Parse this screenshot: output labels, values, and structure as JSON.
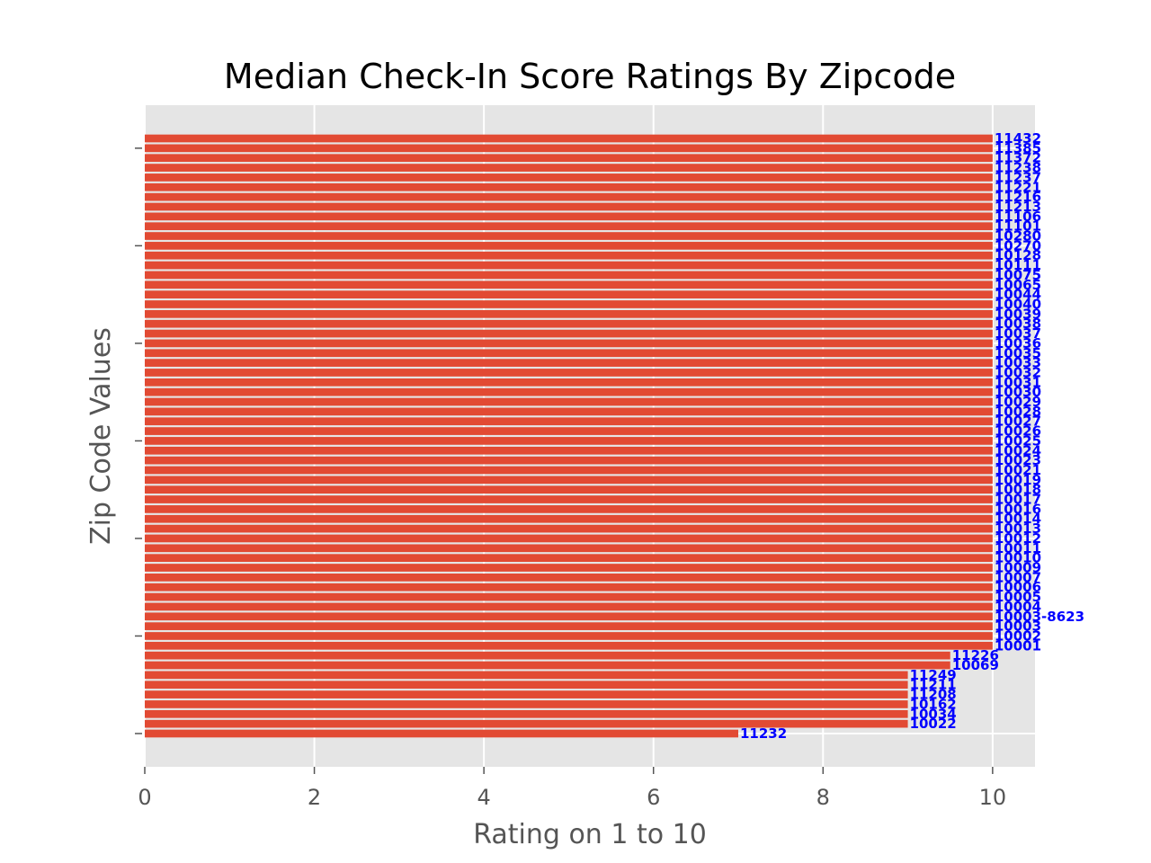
{
  "chart_data": {
    "type": "bar",
    "orientation": "horizontal",
    "title": "Median Check-In Score Ratings By Zipcode",
    "xlabel": "Rating on 1 to 10",
    "ylabel": "Zip Code Values",
    "xlim": [
      0,
      10.5
    ],
    "xticks": [
      0,
      2,
      4,
      6,
      8,
      10
    ],
    "grid": true,
    "legend": "none",
    "colors": {
      "bar": "#e24a33",
      "label": "#0000ff",
      "plot_bg": "#e5e5e5",
      "grid": "#ffffff"
    },
    "categories": [
      "11232",
      "10022",
      "10034",
      "10162",
      "11208",
      "11211",
      "11249",
      "10069",
      "11226",
      "10001",
      "10002",
      "10003",
      "10003-8623",
      "10004",
      "10005",
      "10006",
      "10007",
      "10009",
      "10010",
      "10011",
      "10012",
      "10013",
      "10014",
      "10016",
      "10017",
      "10018",
      "10019",
      "10021",
      "10023",
      "10024",
      "10025",
      "10026",
      "10027",
      "10028",
      "10029",
      "10030",
      "10031",
      "10032",
      "10033",
      "10035",
      "10036",
      "10037",
      "10038",
      "10039",
      "10040",
      "10044",
      "10065",
      "10075",
      "10111",
      "10128",
      "10270",
      "10280",
      "11101",
      "11106",
      "11213",
      "11216",
      "11221",
      "11237",
      "11238",
      "11372",
      "11385",
      "11432"
    ],
    "values": [
      7,
      9,
      9,
      9,
      9,
      9,
      9,
      9.5,
      9.5,
      10,
      10,
      10,
      10,
      10,
      10,
      10,
      10,
      10,
      10,
      10,
      10,
      10,
      10,
      10,
      10,
      10,
      10,
      10,
      10,
      10,
      10,
      10,
      10,
      10,
      10,
      10,
      10,
      10,
      10,
      10,
      10,
      10,
      10,
      10,
      10,
      10,
      10,
      10,
      10,
      10,
      10,
      10,
      10,
      10,
      10,
      10,
      10,
      10,
      10,
      10,
      10,
      10
    ]
  }
}
